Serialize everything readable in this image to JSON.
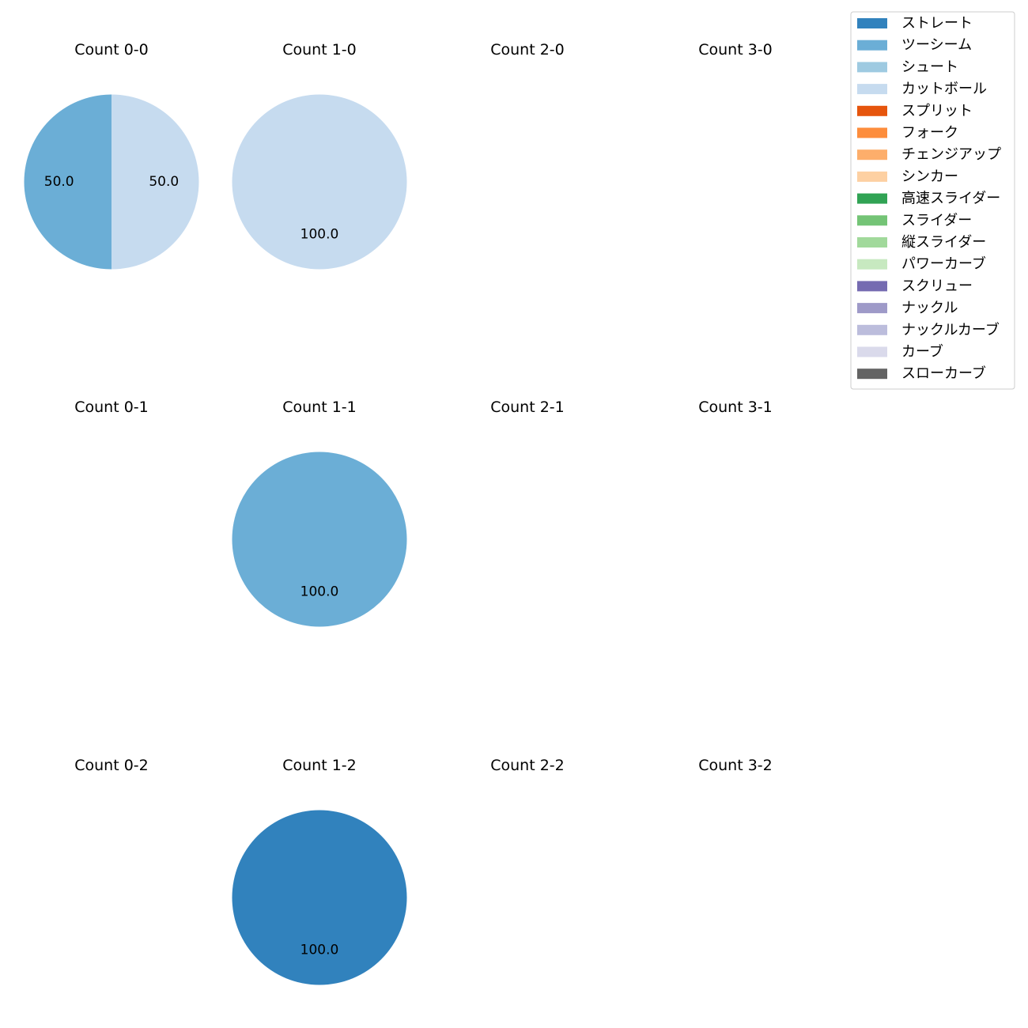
{
  "chart_data": {
    "type": "pie",
    "legend": {
      "placement": "top-right",
      "entries": [
        {
          "label": "ストレート",
          "color": "#3182bd"
        },
        {
          "label": "ツーシーム",
          "color": "#6baed6"
        },
        {
          "label": "シュート",
          "color": "#9ecae1"
        },
        {
          "label": "カットボール",
          "color": "#c6dbef"
        },
        {
          "label": "スプリット",
          "color": "#e6550d"
        },
        {
          "label": "フォーク",
          "color": "#fd8d3c"
        },
        {
          "label": "チェンジアップ",
          "color": "#fdae6b"
        },
        {
          "label": "シンカー",
          "color": "#fdd0a2"
        },
        {
          "label": "高速スライダー",
          "color": "#31a354"
        },
        {
          "label": "スライダー",
          "color": "#74c476"
        },
        {
          "label": "縦スライダー",
          "color": "#a1d99b"
        },
        {
          "label": "パワーカーブ",
          "color": "#c7e9c0"
        },
        {
          "label": "スクリュー",
          "color": "#756bb1"
        },
        {
          "label": "ナックル",
          "color": "#9e9ac8"
        },
        {
          "label": "ナックルカーブ",
          "color": "#bcbddc"
        },
        {
          "label": "カーブ",
          "color": "#dadaeb"
        },
        {
          "label": "スローカーブ",
          "color": "#636363"
        }
      ]
    },
    "panels": [
      {
        "title": "Count 0-0",
        "slices": [
          {
            "pitch": "ツーシーム",
            "value": 50.0,
            "label": "50.0"
          },
          {
            "pitch": "カットボール",
            "value": 50.0,
            "label": "50.0"
          }
        ]
      },
      {
        "title": "Count 1-0",
        "slices": [
          {
            "pitch": "カットボール",
            "value": 100.0,
            "label": "100.0"
          }
        ]
      },
      {
        "title": "Count 2-0",
        "slices": []
      },
      {
        "title": "Count 3-0",
        "slices": []
      },
      {
        "title": "Count 0-1",
        "slices": []
      },
      {
        "title": "Count 1-1",
        "slices": [
          {
            "pitch": "ツーシーム",
            "value": 100.0,
            "label": "100.0"
          }
        ]
      },
      {
        "title": "Count 2-1",
        "slices": []
      },
      {
        "title": "Count 3-1",
        "slices": []
      },
      {
        "title": "Count 0-2",
        "slices": []
      },
      {
        "title": "Count 1-2",
        "slices": [
          {
            "pitch": "ストレート",
            "value": 100.0,
            "label": "100.0"
          }
        ]
      },
      {
        "title": "Count 2-2",
        "slices": []
      },
      {
        "title": "Count 3-2",
        "slices": []
      }
    ]
  }
}
